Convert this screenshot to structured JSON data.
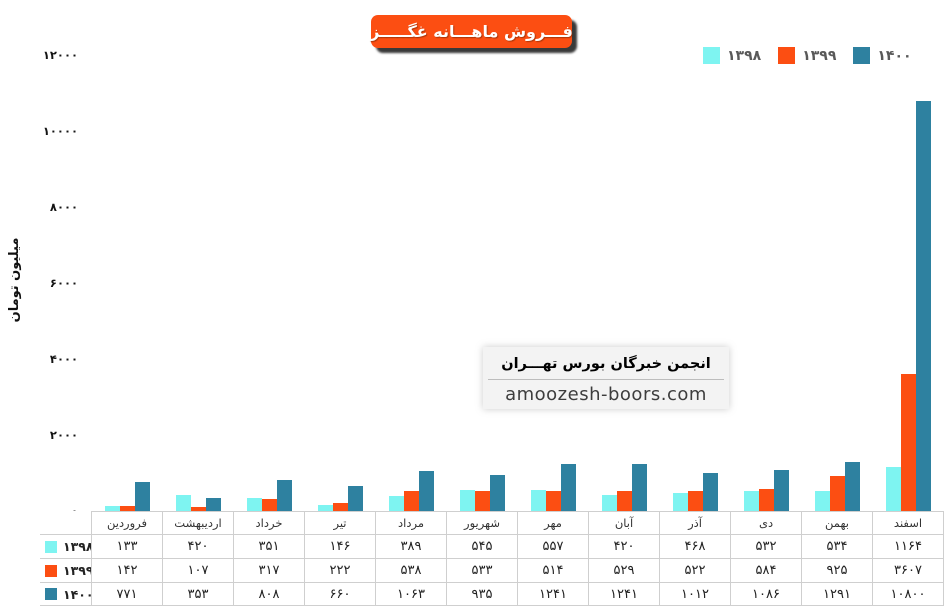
{
  "title": {
    "text": "فـــروش ماهـــانه غگـــــز",
    "bg_color": "#fc4e12",
    "text_color": "#ffffff"
  },
  "legend": [
    {
      "label": "۱۳۹۸",
      "color": "#7ef4f1"
    },
    {
      "label": "۱۳۹۹",
      "color": "#fc4e12"
    },
    {
      "label": "۱۴۰۰",
      "color": "#2e81a0"
    }
  ],
  "watermark": {
    "line1": "انجمن خبرگان بورس تهـــران",
    "line2": "amoozesh-boors.com"
  },
  "chart_data": {
    "type": "bar",
    "title": "فـــروش ماهـــانه غگـــــز",
    "xlabel": "",
    "ylabel": "میلیون تومان",
    "ylim": [
      0,
      12000
    ],
    "grid": false,
    "legend_position": "top-right",
    "categories": [
      "فروردین",
      "اردیبهشت",
      "خرداد",
      "تیر",
      "مرداد",
      "شهریور",
      "مهر",
      "آبان",
      "آذر",
      "دی",
      "بهمن",
      "اسفند"
    ],
    "yticks": [
      {
        "value": 0,
        "label": "۰"
      },
      {
        "value": 2000,
        "label": "۲۰۰۰"
      },
      {
        "value": 4000,
        "label": "۴۰۰۰"
      },
      {
        "value": 6000,
        "label": "۶۰۰۰"
      },
      {
        "value": 8000,
        "label": "۸۰۰۰"
      },
      {
        "value": 10000,
        "label": "۱۰۰۰۰"
      },
      {
        "value": 12000,
        "label": "۱۲۰۰۰"
      }
    ],
    "series": [
      {
        "name": "۱۳۹۸",
        "name_en": "1398",
        "color": "#7ef4f1",
        "values": [
          133,
          420,
          351,
          146,
          389,
          545,
          557,
          420,
          468,
          532,
          534,
          1164
        ],
        "labels": [
          "۱۳۳",
          "۴۲۰",
          "۳۵۱",
          "۱۴۶",
          "۳۸۹",
          "۵۴۵",
          "۵۵۷",
          "۴۲۰",
          "۴۶۸",
          "۵۳۲",
          "۵۳۴",
          "۱۱۶۴"
        ]
      },
      {
        "name": "۱۳۹۹",
        "name_en": "1399",
        "color": "#fc4e12",
        "values": [
          142,
          107,
          317,
          222,
          538,
          533,
          514,
          529,
          522,
          584,
          925,
          3607
        ],
        "labels": [
          "۱۴۲",
          "۱۰۷",
          "۳۱۷",
          "۲۲۲",
          "۵۳۸",
          "۵۳۳",
          "۵۱۴",
          "۵۲۹",
          "۵۲۲",
          "۵۸۴",
          "۹۲۵",
          "۳۶۰۷"
        ]
      },
      {
        "name": "۱۴۰۰",
        "name_en": "1400",
        "color": "#2e81a0",
        "values": [
          771,
          353,
          808,
          660,
          1063,
          935,
          1241,
          1241,
          1012,
          1086,
          1291,
          10800
        ],
        "labels": [
          "۷۷۱",
          "۳۵۳",
          "۸۰۸",
          "۶۶۰",
          "۱۰۶۳",
          "۹۳۵",
          "۱۲۴۱",
          "۱۲۴۱",
          "۱۰۱۲",
          "۱۰۸۶",
          "۱۲۹۱",
          "۱۰۸۰۰"
        ]
      }
    ]
  }
}
